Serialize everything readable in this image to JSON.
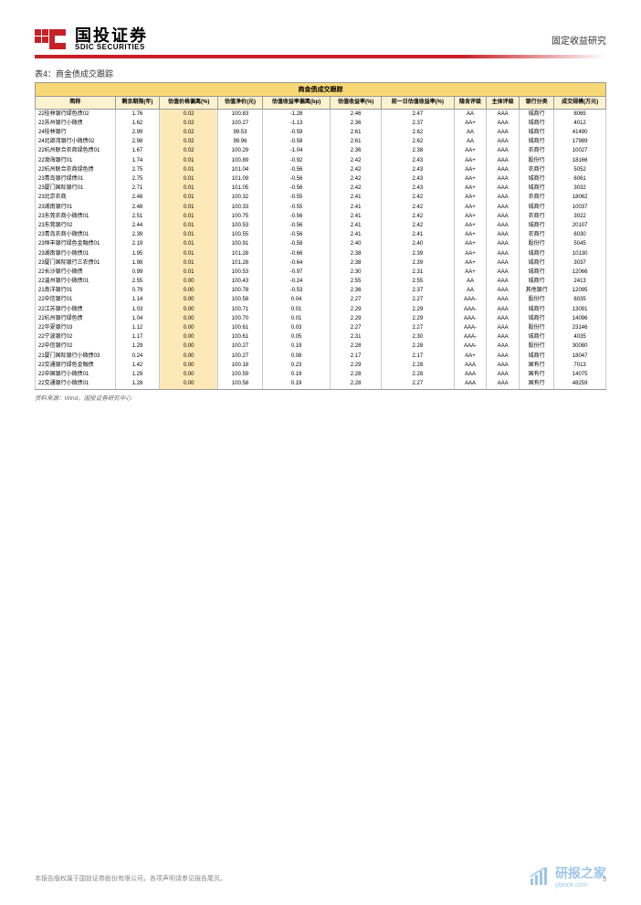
{
  "header": {
    "logo_cn": "国投证券",
    "logo_en": "SDIC SECURITIES",
    "doc_type": "固定收益研究",
    "logo_color": "#c62127"
  },
  "table": {
    "title": "表4：商金债成交跟踪",
    "main_header": "商金债成交跟踪",
    "columns": [
      "简称",
      "剩余期限(年)",
      "估值价格偏离(%)",
      "估值净价(元)",
      "估值收益率偏离(bp)",
      "估值收益率(%)",
      "前一日估值收益率(%)",
      "隐含评级",
      "主体评级",
      "银行分类",
      "成交规模(万元)"
    ],
    "highlight_col": 2,
    "rows": [
      [
        "22桂林银行绿色债02",
        "1.76",
        "0.02",
        "100.83",
        "-1.28",
        "2.46",
        "2.47",
        "AA",
        "AAA",
        "城商行",
        "8065"
      ],
      [
        "22苏州银行小微债",
        "1.62",
        "0.02",
        "100.27",
        "-1.13",
        "2.36",
        "2.37",
        "AA+",
        "AAA",
        "城商行",
        "4012"
      ],
      [
        "24桂林银行",
        "2.99",
        "0.02",
        "99.53",
        "-0.59",
        "2.61",
        "2.62",
        "AA",
        "AAA",
        "城商行",
        "41490"
      ],
      [
        "24北部湾银行小微债02",
        "2.98",
        "0.02",
        "99.96",
        "-0.58",
        "2.61",
        "2.62",
        "AA",
        "AAA",
        "城商行",
        "17989"
      ],
      [
        "22杭州联合农商绿色债01",
        "1.67",
        "0.02",
        "100.29",
        "-1.04",
        "2.36",
        "2.38",
        "AA+",
        "AAA",
        "农商行",
        "10027"
      ],
      [
        "22渤海银行01",
        "1.74",
        "0.01",
        "100.89",
        "-0.92",
        "2.42",
        "2.43",
        "AA+",
        "AAA",
        "股份行",
        "18166"
      ],
      [
        "22杭州联合农商绿色债",
        "2.75",
        "0.01",
        "101.04",
        "-0.56",
        "2.42",
        "2.43",
        "AA+",
        "AAA",
        "农商行",
        "5052"
      ],
      [
        "23青岛银行绿债01",
        "2.75",
        "0.01",
        "101.09",
        "-0.56",
        "2.42",
        "2.43",
        "AA+",
        "AAA",
        "城商行",
        "6061"
      ],
      [
        "23厦门国际银行01",
        "2.71",
        "0.01",
        "101.05",
        "-0.56",
        "2.42",
        "2.43",
        "AA+",
        "AAA",
        "城商行",
        "3032"
      ],
      [
        "23北京农商",
        "2.48",
        "0.01",
        "100.32",
        "-0.55",
        "2.41",
        "2.42",
        "AA+",
        "AAA",
        "农商行",
        "18062"
      ],
      [
        "23湖南银行01",
        "2.48",
        "0.01",
        "100.33",
        "-0.55",
        "2.41",
        "2.42",
        "AA+",
        "AAA",
        "城商行",
        "10037"
      ],
      [
        "23东莞农商小微债01",
        "2.51",
        "0.01",
        "100.75",
        "-0.56",
        "2.41",
        "2.42",
        "AA+",
        "AAA",
        "农商行",
        "3022"
      ],
      [
        "23东莞银行02",
        "2.44",
        "0.01",
        "100.53",
        "-0.56",
        "2.41",
        "2.42",
        "AA+",
        "AAA",
        "城商行",
        "20107"
      ],
      [
        "23青岛农商小微债01",
        "2.39",
        "0.01",
        "100.55",
        "-0.56",
        "2.41",
        "2.41",
        "AA+",
        "AAA",
        "农商行",
        "6030"
      ],
      [
        "23恒丰银行绿色金融债01",
        "2.19",
        "0.01",
        "100.91",
        "-0.58",
        "2.40",
        "2.40",
        "AA+",
        "AAA",
        "股份行",
        "5045"
      ],
      [
        "23湖南银行小微债01",
        "1.95",
        "0.01",
        "101.28",
        "-0.66",
        "2.38",
        "2.39",
        "AA+",
        "AAA",
        "城商行",
        "10130"
      ],
      [
        "23厦门国际银行三农债01",
        "1.98",
        "0.01",
        "101.28",
        "-0.64",
        "2.38",
        "2.39",
        "AA+",
        "AAA",
        "城商行",
        "3037"
      ],
      [
        "22长沙银行小微债",
        "0.99",
        "0.01",
        "100.53",
        "-0.97",
        "2.30",
        "2.31",
        "AA+",
        "AAA",
        "城商行",
        "12066"
      ],
      [
        "22温州银行小微债01",
        "2.55",
        "0.00",
        "100.43",
        "-0.24",
        "2.55",
        "2.55",
        "AA",
        "AAA",
        "城商行",
        "2413"
      ],
      [
        "21南洋银行01",
        "0.79",
        "0.00",
        "100.78",
        "-0.53",
        "2.36",
        "2.37",
        "AA",
        "AAA",
        "其他银行",
        "12095"
      ],
      [
        "22中信银行01",
        "1.14",
        "0.00",
        "100.58",
        "0.04",
        "2.27",
        "2.27",
        "AAA-",
        "AAA",
        "股份行",
        "6035"
      ],
      [
        "22江苏银行小微债",
        "1.03",
        "0.00",
        "100.71",
        "0.01",
        "2.29",
        "2.29",
        "AAA-",
        "AAA",
        "城商行",
        "13091"
      ],
      [
        "22杭州银行绿色债",
        "1.04",
        "0.00",
        "100.70",
        "0.01",
        "2.29",
        "2.29",
        "AAA-",
        "AAA",
        "城商行",
        "14096"
      ],
      [
        "22华夏银行03",
        "1.12",
        "0.00",
        "100.61",
        "0.03",
        "2.27",
        "2.27",
        "AAA-",
        "AAA",
        "股份行",
        "23146"
      ],
      [
        "22宁波银行02",
        "1.17",
        "0.00",
        "100.61",
        "0.05",
        "2.31",
        "2.30",
        "AAA-",
        "AAA",
        "城商行",
        "4035"
      ],
      [
        "22中信银行02",
        "1.29",
        "0.00",
        "100.27",
        "0.19",
        "2.28",
        "2.28",
        "AAA-",
        "AAA",
        "股份行",
        "30080"
      ],
      [
        "21厦门国际银行小微债03",
        "0.24",
        "0.00",
        "100.27",
        "0.08",
        "2.17",
        "2.17",
        "AA+",
        "AAA",
        "城商行",
        "18047"
      ],
      [
        "22交通银行绿色金融债",
        "1.42",
        "0.00",
        "100.18",
        "0.23",
        "2.29",
        "2.28",
        "AAA",
        "AAA",
        "国有行",
        "7013"
      ],
      [
        "22中国银行小微债01",
        "1.29",
        "0.00",
        "100.59",
        "0.19",
        "2.28",
        "2.28",
        "AAA",
        "AAA",
        "国有行",
        "14075"
      ],
      [
        "22交通银行小微债01",
        "1.28",
        "0.00",
        "100.58",
        "0.19",
        "2.28",
        "2.27",
        "AAA",
        "AAA",
        "国有行",
        "48259"
      ]
    ],
    "source_note": "资料来源：Wind，国投证券研究中心"
  },
  "footer": {
    "copyright": "本报告版权属于国投证券股份有限公司，各项声明请参见报告尾页。",
    "page_num": "5",
    "watermark_text": "研报之家",
    "watermark_url": "yblook.com",
    "watermark_color": "#3b8fd4"
  }
}
